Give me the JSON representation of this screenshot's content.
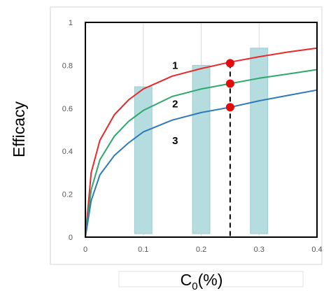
{
  "chart_data": {
    "type": "line",
    "xlabel": "C",
    "xlabel_subscript": "0",
    "xlabel_suffix": "(%)",
    "ylabel": "Efficacy",
    "xlim": [
      0,
      0.4
    ],
    "ylim": [
      0,
      1
    ],
    "xticks": [
      0,
      0.1,
      0.2,
      0.3,
      0.4
    ],
    "yticks": [
      0,
      0.2,
      0.4,
      0.6,
      0.8,
      1
    ],
    "xtick_labels": [
      "0",
      "0.1",
      "0.2",
      "0.3",
      "0.4"
    ],
    "ytick_labels": [
      "0",
      "0.2",
      "0.4",
      "0.6",
      "0.8",
      "1"
    ],
    "grid": "vertical",
    "series": [
      {
        "name": "1",
        "color": "#e8282b",
        "x": [
          0,
          0.01,
          0.025,
          0.05,
          0.075,
          0.1,
          0.15,
          0.2,
          0.25,
          0.3,
          0.35,
          0.4
        ],
        "y": [
          0,
          0.3,
          0.45,
          0.57,
          0.64,
          0.69,
          0.75,
          0.785,
          0.815,
          0.84,
          0.862,
          0.88
        ]
      },
      {
        "name": "2",
        "color": "#2ca86a",
        "x": [
          0,
          0.01,
          0.025,
          0.05,
          0.075,
          0.1,
          0.15,
          0.2,
          0.25,
          0.3,
          0.35,
          0.4
        ],
        "y": [
          0,
          0.22,
          0.36,
          0.47,
          0.54,
          0.59,
          0.655,
          0.69,
          0.715,
          0.74,
          0.76,
          0.78
        ]
      },
      {
        "name": "3",
        "color": "#2e7ab8",
        "x": [
          0,
          0.01,
          0.025,
          0.05,
          0.075,
          0.1,
          0.15,
          0.2,
          0.25,
          0.3,
          0.35,
          0.4
        ],
        "y": [
          0,
          0.17,
          0.29,
          0.38,
          0.44,
          0.49,
          0.545,
          0.58,
          0.605,
          0.635,
          0.66,
          0.685
        ]
      }
    ],
    "bars": {
      "color": "#b5dde0",
      "edge": "#9ccbd0",
      "x": [
        0.1,
        0.2,
        0.3
      ],
      "y": [
        0.7,
        0.8,
        0.88
      ],
      "width": 0.03
    },
    "points": {
      "color": "#e20a0a",
      "x": [
        0.25,
        0.25,
        0.25
      ],
      "y": [
        0.81,
        0.715,
        0.605
      ]
    },
    "reference_line": {
      "x": 0.25,
      "y_from": 0,
      "y_to": 0.81,
      "style": "dashed",
      "color": "#000000"
    },
    "curve_labels": [
      {
        "text": "1",
        "x": 0.155,
        "y": 0.8
      },
      {
        "text": "2",
        "x": 0.155,
        "y": 0.62
      },
      {
        "text": "3",
        "x": 0.155,
        "y": 0.45
      }
    ]
  }
}
